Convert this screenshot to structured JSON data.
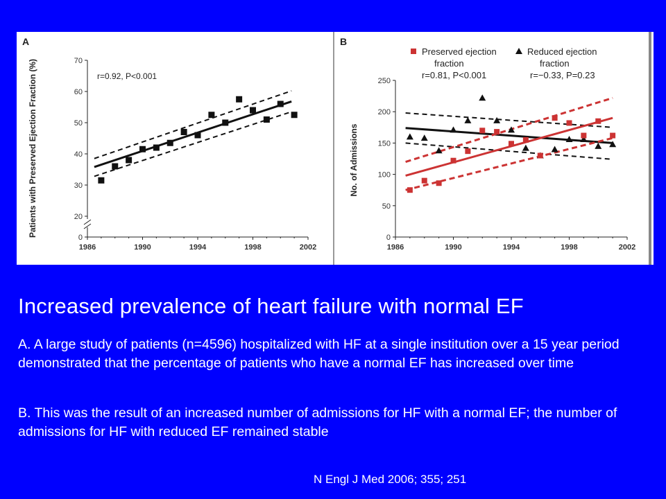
{
  "chart_data": [
    {
      "type": "scatter",
      "panel_label": "A",
      "ylabel": "Patients with Preserved Ejection Fraction (%)",
      "xlim": [
        1986,
        2002
      ],
      "ylim": [
        0,
        70
      ],
      "x_ticks": [
        "1986",
        "1990",
        "1994",
        "1998",
        "2002"
      ],
      "y_ticks": [
        "0",
        "20",
        "30",
        "40",
        "50",
        "60",
        "70"
      ],
      "axis_break": true,
      "annotation": "r=0.92, P<0.001",
      "series": [
        {
          "marker": "square",
          "color": "#111111",
          "x": [
            1987,
            1988,
            1989,
            1990,
            1991,
            1992,
            1993,
            1994,
            1995,
            1996,
            1997,
            1998,
            1999,
            2000,
            2001
          ],
          "y": [
            31.5,
            36,
            38,
            41.5,
            42,
            43.5,
            47,
            46,
            52.5,
            50,
            57.5,
            54,
            51,
            56,
            52.5
          ],
          "trend": [
            [
              1986.5,
              35.8
            ],
            [
              2000.8,
              56.8
            ]
          ],
          "ci_upper": [
            [
              1986.5,
              38.5
            ],
            [
              2000.8,
              60.2
            ]
          ],
          "ci_lower": [
            [
              1986.5,
              32.8
            ],
            [
              2000.8,
              53.5
            ]
          ]
        }
      ]
    },
    {
      "type": "scatter",
      "panel_label": "B",
      "ylabel": "No. of Admissions",
      "xlim": [
        1986,
        2002
      ],
      "ylim": [
        0,
        250
      ],
      "x_ticks": [
        "1986",
        "1990",
        "1994",
        "1998",
        "2002"
      ],
      "y_ticks": [
        "0",
        "50",
        "100",
        "150",
        "200",
        "250"
      ],
      "legend_position": "top",
      "series": [
        {
          "name": "Preserved ejection fraction",
          "stat": "r=0.81, P<0.001",
          "marker": "square",
          "color": "#cc3333",
          "x": [
            1987,
            1988,
            1989,
            1990,
            1991,
            1992,
            1993,
            1994,
            1995,
            1996,
            1997,
            1998,
            1999,
            2000,
            2001
          ],
          "y": [
            75,
            90,
            86,
            122,
            137,
            170,
            168,
            149,
            155,
            130,
            190,
            182,
            162,
            185,
            162
          ],
          "trend": [
            [
              1986.7,
              98
            ],
            [
              2001,
              190
            ]
          ],
          "ci_upper": [
            [
              1986.7,
              120
            ],
            [
              2001,
              222
            ]
          ],
          "ci_lower": [
            [
              1986.7,
              75
            ],
            [
              2001,
              158
            ]
          ]
        },
        {
          "name": "Reduced ejection fraction",
          "stat": "r=−0.33, P=0.23",
          "marker": "triangle",
          "color": "#111111",
          "x": [
            1987,
            1988,
            1989,
            1990,
            1991,
            1992,
            1993,
            1994,
            1995,
            1996,
            1997,
            1998,
            1999,
            2000,
            2001
          ],
          "y": [
            160,
            158,
            138,
            171,
            186,
            222,
            186,
            171,
            142,
            130,
            140,
            156,
            156,
            145,
            148
          ],
          "trend": [
            [
              1986.7,
              174
            ],
            [
              2001,
              150
            ]
          ],
          "ci_upper": [
            [
              1986.7,
              198
            ],
            [
              2001,
              175
            ]
          ],
          "ci_lower": [
            [
              1986.7,
              150
            ],
            [
              2001,
              124
            ]
          ]
        }
      ]
    }
  ],
  "slide": {
    "title": "Increased  prevalence  of heart failure  with normal EF",
    "paragraph_a": "A. A large study of patients (n=4596) hospitalized with HF at a single institution over a 15 year period demonstrated that the percentage of patients who have a normal EF has increased over time",
    "paragraph_b": "B. This was the result of  an increased number of admissions for HF with a normal EF; the number of admissions for HF with reduced EF remained stable",
    "citation": "N Engl J Med 2006; 355; 251"
  },
  "colors": {
    "background": "#0000ff",
    "text": "#ffffff",
    "preserved": "#cc3333",
    "reduced": "#111111"
  }
}
